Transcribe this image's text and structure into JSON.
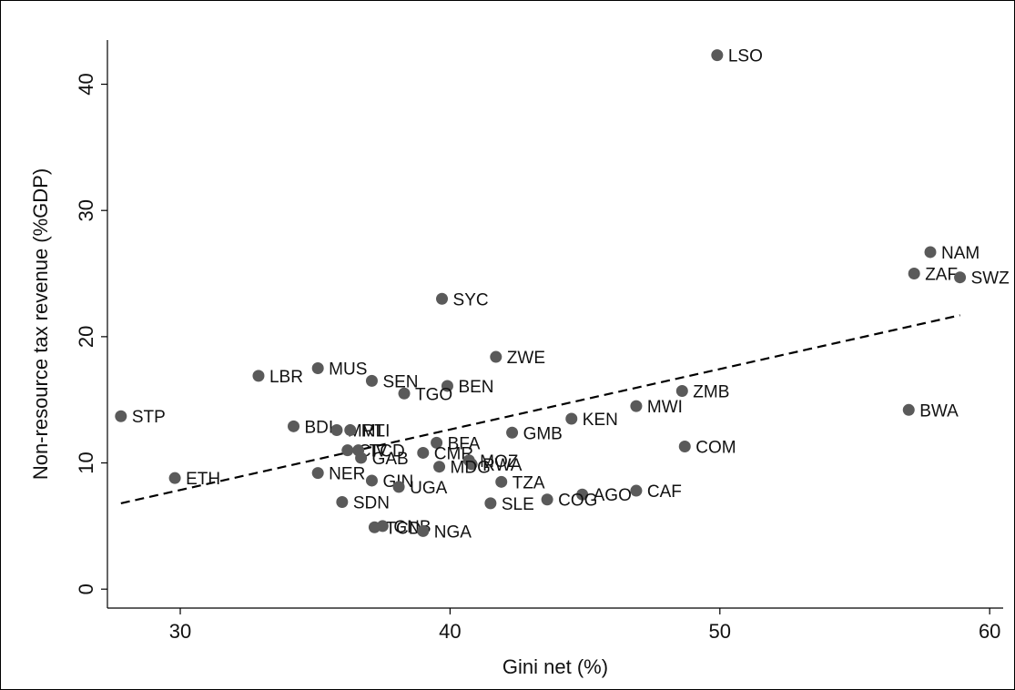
{
  "chart_data": {
    "type": "scatter",
    "title": "",
    "xlabel": "Gini net (%)",
    "ylabel": "Non-resource tax revenue (%GDP)",
    "xlim": [
      27.3,
      60.5
    ],
    "ylim": [
      -1.5,
      43.5
    ],
    "xticks": [
      30,
      40,
      50,
      60
    ],
    "yticks": [
      0,
      10,
      20,
      30,
      40
    ],
    "grid": false,
    "legend": "none",
    "marker_color": "#5a5a5a",
    "fit_line": {
      "style": "dashed",
      "x": [
        27.8,
        58.9
      ],
      "y": [
        6.8,
        21.7
      ]
    },
    "points": [
      {
        "label": "LSO",
        "x": 49.9,
        "y": 42.3
      },
      {
        "label": "NAM",
        "x": 57.8,
        "y": 26.7
      },
      {
        "label": "ZAF",
        "x": 57.2,
        "y": 25.0
      },
      {
        "label": "SWZ",
        "x": 58.9,
        "y": 24.7
      },
      {
        "label": "SYC",
        "x": 39.7,
        "y": 23.0
      },
      {
        "label": "ZWE",
        "x": 41.7,
        "y": 18.4
      },
      {
        "label": "MUS",
        "x": 35.1,
        "y": 17.5
      },
      {
        "label": "LBR",
        "x": 32.9,
        "y": 16.9
      },
      {
        "label": "SEN",
        "x": 37.1,
        "y": 16.5
      },
      {
        "label": "BEN",
        "x": 39.9,
        "y": 16.1
      },
      {
        "label": "TGO",
        "x": 38.3,
        "y": 15.5
      },
      {
        "label": "ZMB",
        "x": 48.6,
        "y": 15.7
      },
      {
        "label": "MWI",
        "x": 46.9,
        "y": 14.5
      },
      {
        "label": "BWA",
        "x": 57.0,
        "y": 14.2
      },
      {
        "label": "STP",
        "x": 27.8,
        "y": 13.7
      },
      {
        "label": "KEN",
        "x": 44.5,
        "y": 13.5
      },
      {
        "label": "BDI",
        "x": 34.2,
        "y": 12.9
      },
      {
        "label": "MRT",
        "x": 35.8,
        "y": 12.6
      },
      {
        "label": "MLI",
        "x": 36.3,
        "y": 12.6
      },
      {
        "label": "GMB",
        "x": 42.3,
        "y": 12.4
      },
      {
        "label": "BFA",
        "x": 39.5,
        "y": 11.6
      },
      {
        "label": "COM",
        "x": 48.7,
        "y": 11.3
      },
      {
        "label": "CIV",
        "x": 36.2,
        "y": 11.0
      },
      {
        "label": "TCD",
        "x": 36.6,
        "y": 11.0
      },
      {
        "label": "CMR",
        "x": 39.0,
        "y": 10.8
      },
      {
        "label": "GAB",
        "x": 36.7,
        "y": 10.4
      },
      {
        "label": "MOZ",
        "x": 40.7,
        "y": 10.2
      },
      {
        "label": "RWA",
        "x": 40.8,
        "y": 9.9
      },
      {
        "label": "MDG",
        "x": 39.6,
        "y": 9.7
      },
      {
        "label": "NER",
        "x": 35.1,
        "y": 9.2
      },
      {
        "label": "ETH",
        "x": 29.8,
        "y": 8.8
      },
      {
        "label": "GIN",
        "x": 37.1,
        "y": 8.6
      },
      {
        "label": "TZA",
        "x": 41.9,
        "y": 8.5
      },
      {
        "label": "UGA",
        "x": 38.1,
        "y": 8.1
      },
      {
        "label": "CAF",
        "x": 46.9,
        "y": 7.8
      },
      {
        "label": "AGO",
        "x": 44.9,
        "y": 7.5
      },
      {
        "label": "COG",
        "x": 43.6,
        "y": 7.1
      },
      {
        "label": "SDN",
        "x": 36.0,
        "y": 6.9
      },
      {
        "label": "SLE",
        "x": 41.5,
        "y": 6.8
      },
      {
        "label": "TCD",
        "x": 37.2,
        "y": 4.9
      },
      {
        "label": "GNB",
        "x": 37.5,
        "y": 5.0
      },
      {
        "label": "NGA",
        "x": 39.0,
        "y": 4.6
      }
    ]
  }
}
